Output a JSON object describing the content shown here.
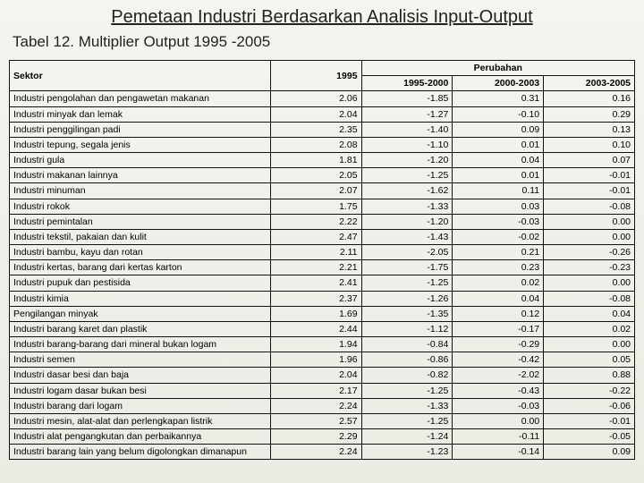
{
  "page_title": "Pemetaan Industri Berdasarkan Analisis Input-Output",
  "table_title": "Tabel 12. Multiplier Output 1995 -2005",
  "table": {
    "type": "table",
    "background_color": "#f5f5f0",
    "border_color": "#111111",
    "text_color": "#000000",
    "font_family": "Arial",
    "header_fontsize": 11,
    "body_fontsize": 10.5,
    "columns": {
      "sektor": "Sektor",
      "y1995": "1995",
      "perubahan": "Perubahan",
      "p1": "1995-2000",
      "p2": "2000-2003",
      "p3": "2003-2005"
    },
    "col_widths": {
      "sektor": 290,
      "y1995": 95,
      "p1": 95,
      "p2": 95,
      "p3": 95
    },
    "alignment": {
      "sektor": "left",
      "y1995": "right",
      "p1": "right",
      "p2": "right",
      "p3": "right"
    },
    "rows": [
      {
        "s": "Industri pengolahan dan pengawetan makanan",
        "v": "2.06",
        "a": "-1.85",
        "b": "0.31",
        "c": "0.16"
      },
      {
        "s": "Industri minyak dan lemak",
        "v": "2.04",
        "a": "-1.27",
        "b": "-0.10",
        "c": "0.29"
      },
      {
        "s": "Industri penggilingan padi",
        "v": "2.35",
        "a": "-1.40",
        "b": "0.09",
        "c": "0.13"
      },
      {
        "s": "Industri tepung, segala jenis",
        "v": "2.08",
        "a": "-1.10",
        "b": "0.01",
        "c": "0.10"
      },
      {
        "s": "Industri gula",
        "v": "1.81",
        "a": "-1.20",
        "b": "0.04",
        "c": "0.07"
      },
      {
        "s": "Industri makanan lainnya",
        "v": "2.05",
        "a": "-1.25",
        "b": "0.01",
        "c": "-0.01"
      },
      {
        "s": "Industri minuman",
        "v": "2.07",
        "a": "-1.62",
        "b": "0.11",
        "c": "-0.01"
      },
      {
        "s": "Industri rokok",
        "v": "1.75",
        "a": "-1.33",
        "b": "0.03",
        "c": "-0.08"
      },
      {
        "s": "Industri pemintalan",
        "v": "2.22",
        "a": "-1.20",
        "b": "-0.03",
        "c": "0.00"
      },
      {
        "s": "Industri tekstil, pakaian dan kulit",
        "v": "2.47",
        "a": "-1.43",
        "b": "-0.02",
        "c": "0.00"
      },
      {
        "s": "Industri bambu, kayu dan rotan",
        "v": "2.11",
        "a": "-2.05",
        "b": "0.21",
        "c": "-0.26"
      },
      {
        "s": "Industri kertas, barang dari kertas karton",
        "v": "2.21",
        "a": "-1.75",
        "b": "0.23",
        "c": "-0.23"
      },
      {
        "s": "Industri pupuk dan pestisida",
        "v": "2.41",
        "a": "-1.25",
        "b": "0.02",
        "c": "0.00"
      },
      {
        "s": "Industri kimia",
        "v": "2.37",
        "a": "-1.26",
        "b": "0.04",
        "c": "-0.08"
      },
      {
        "s": "Pengilangan minyak",
        "v": "1.69",
        "a": "-1.35",
        "b": "0.12",
        "c": "0.04"
      },
      {
        "s": "Industri barang karet dan plastik",
        "v": "2.44",
        "a": "-1.12",
        "b": "-0.17",
        "c": "0.02"
      },
      {
        "s": "Industri barang-barang dari mineral bukan logam",
        "v": "1.94",
        "a": "-0.84",
        "b": "-0.29",
        "c": "0.00"
      },
      {
        "s": "Industri semen",
        "v": "1.96",
        "a": "-0.86",
        "b": "-0.42",
        "c": "0.05"
      },
      {
        "s": "Industri dasar besi dan baja",
        "v": "2.04",
        "a": "-0.82",
        "b": "-2.02",
        "c": "0.88"
      },
      {
        "s": "Industri logam dasar bukan besi",
        "v": "2.17",
        "a": "-1.25",
        "b": "-0.43",
        "c": "-0.22"
      },
      {
        "s": "Industri barang dari logam",
        "v": "2.24",
        "a": "-1.33",
        "b": "-0.03",
        "c": "-0.06"
      },
      {
        "s": "Industri mesin, alat-alat dan perlengkapan listrik",
        "v": "2.57",
        "a": "-1.25",
        "b": "0.00",
        "c": "-0.01"
      },
      {
        "s": "Industri alat pengangkutan dan perbaikannya",
        "v": "2.29",
        "a": "-1.24",
        "b": "-0.11",
        "c": "-0.05"
      },
      {
        "s": "Industri barang lain yang belum digolongkan dimanapun",
        "v": "2.24",
        "a": "-1.23",
        "b": "-0.14",
        "c": "0.09"
      }
    ]
  }
}
